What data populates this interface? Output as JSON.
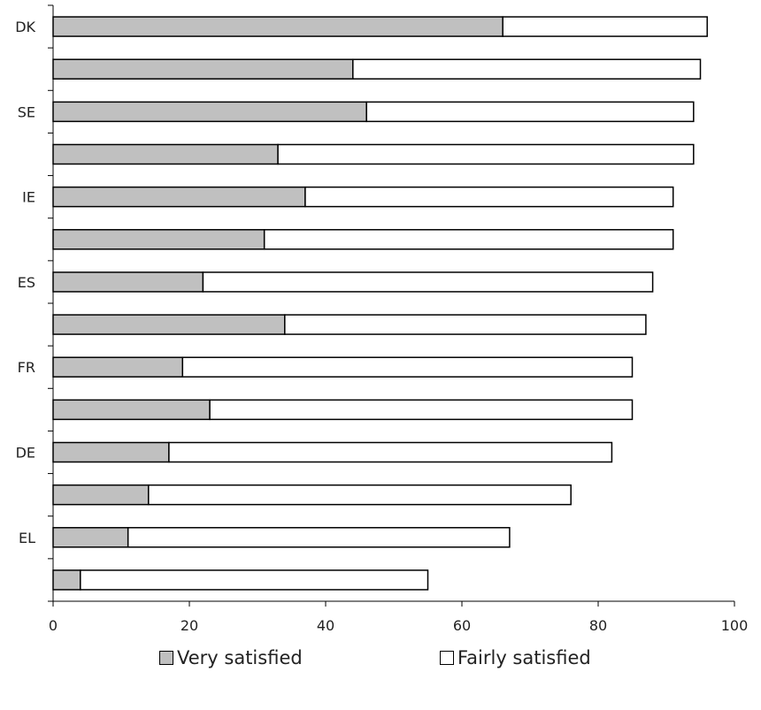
{
  "chart_data": {
    "type": "bar",
    "orientation": "horizontal",
    "stacked": true,
    "categories": [
      "DK",
      "",
      "SE",
      "",
      "IE",
      "",
      "ES",
      "",
      "FR",
      "",
      "DE",
      "",
      "EL",
      ""
    ],
    "series": [
      {
        "name": "Very satisfied",
        "color": "#c0c0c0",
        "values": [
          66,
          44,
          46,
          33,
          37,
          31,
          22,
          34,
          19,
          23,
          17,
          14,
          11,
          4
        ]
      },
      {
        "name": "Fairly satisfied",
        "color": "#ffffff",
        "values": [
          30,
          51,
          48,
          61,
          54,
          60,
          66,
          53,
          66,
          62,
          65,
          62,
          56,
          51
        ]
      }
    ],
    "xlim": [
      0,
      100
    ],
    "xticks": [
      0,
      20,
      40,
      60,
      80,
      100
    ],
    "grid": false,
    "legend_position": "bottom"
  }
}
